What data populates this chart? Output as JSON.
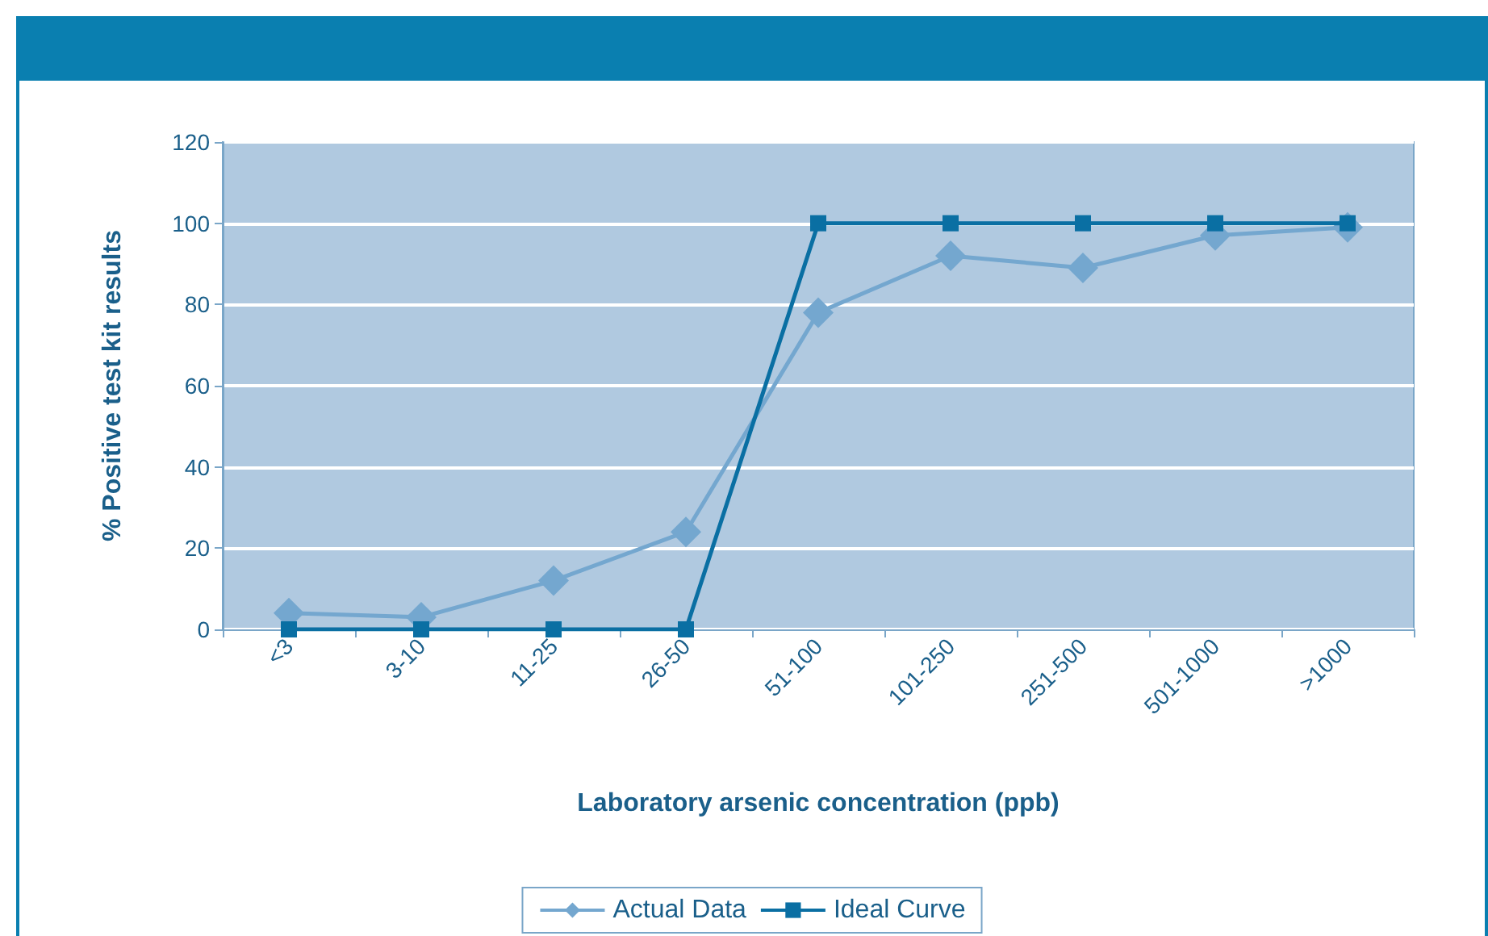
{
  "chart_data": {
    "type": "line",
    "xlabel": "Laboratory arsenic concentration (ppb)",
    "ylabel": "% Positive test kit results",
    "categories": [
      "<3",
      "3-10",
      "11-25",
      "26-50",
      "51-100",
      "101-250",
      "251-500",
      "501-1000",
      ">1000"
    ],
    "series": [
      {
        "name": "Actual Data",
        "color": "#74a7cf",
        "marker": "diamond",
        "values": [
          4,
          3,
          12,
          24,
          78,
          92,
          89,
          97,
          99
        ]
      },
      {
        "name": "Ideal Curve",
        "color": "#0a6fa3",
        "marker": "square",
        "values": [
          0,
          0,
          0,
          0,
          100,
          100,
          100,
          100,
          100
        ]
      }
    ],
    "ylim": [
      0,
      120
    ],
    "yticks": [
      0,
      20,
      40,
      60,
      80,
      100,
      120
    ],
    "grid": "y",
    "legend": "bottom",
    "line_style": "solid"
  }
}
